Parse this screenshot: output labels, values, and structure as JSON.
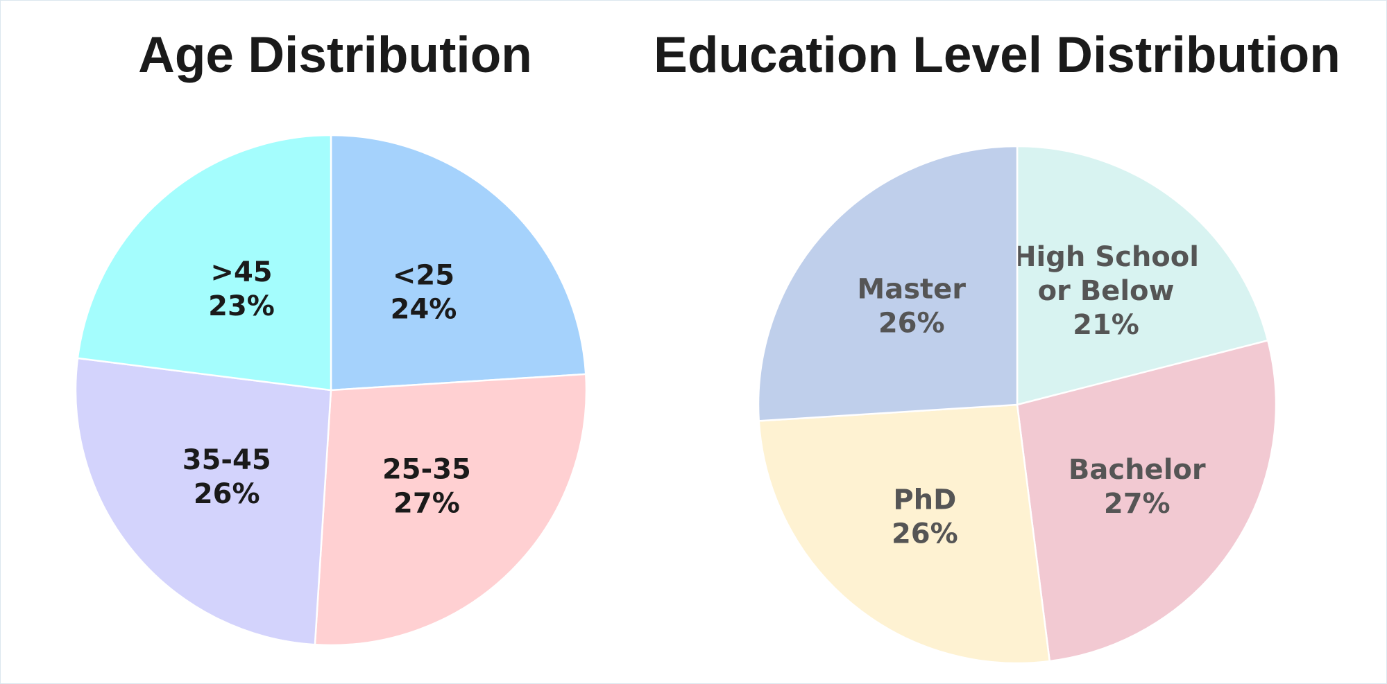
{
  "chart_data": [
    {
      "type": "pie",
      "title": "Age Distribution",
      "label_color": "#1a1a1a",
      "start_angle_deg": 0,
      "direction": "clockwise",
      "slices": [
        {
          "label": "<25",
          "value": 24,
          "value_label": "24%",
          "color": "#a5d2fc"
        },
        {
          "label": "25-35",
          "value": 27,
          "value_label": "27%",
          "color": "#ffd0d2"
        },
        {
          "label": "35-45",
          "value": 26,
          "value_label": "26%",
          "color": "#d3d3fc"
        },
        {
          "label": ">45",
          "value": 23,
          "value_label": "23%",
          "color": "#a4fdfd"
        }
      ]
    },
    {
      "type": "pie",
      "title": "Education Level Distribution",
      "label_color": "#555555",
      "start_angle_deg": 0,
      "direction": "clockwise",
      "slices": [
        {
          "label": "High School or Below",
          "value": 21,
          "value_label": "21%",
          "color": "#d8f3f1"
        },
        {
          "label": "Bachelor",
          "value": 27,
          "value_label": "27%",
          "color": "#f2c9d2"
        },
        {
          "label": "PhD",
          "value": 26,
          "value_label": "26%",
          "color": "#fef2d2"
        },
        {
          "label": "Master",
          "value": 26,
          "value_label": "26%",
          "color": "#bfcfeb"
        }
      ]
    }
  ]
}
